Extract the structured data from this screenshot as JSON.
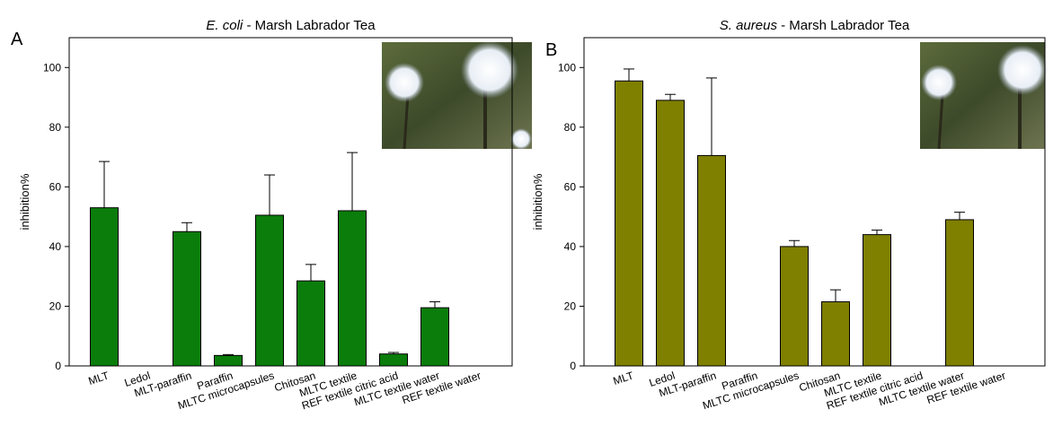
{
  "chart_data": [
    {
      "type": "bar",
      "panel_label": "A",
      "title_species": "E. coli",
      "title": "- Marsh Labrador Tea",
      "y_label": "inhibition%",
      "categories": [
        "MLT",
        "Ledol",
        "MLT-paraffin",
        "Paraffin",
        "MLTC microcapsules",
        "Chitosan",
        "MLTC textile",
        "REF textile citric acid",
        "MLTC textile water",
        "REF textile water"
      ],
      "values": [
        53,
        0,
        45,
        3.5,
        50.5,
        28.5,
        52,
        4,
        19.5,
        0
      ],
      "errors": [
        15.5,
        null,
        3,
        0.3,
        13.5,
        5.5,
        19.5,
        0.5,
        2,
        null
      ],
      "color": "#0a7d0a",
      "ylim": [
        0,
        110
      ],
      "yticks": [
        0,
        20,
        40,
        60,
        80,
        100
      ]
    },
    {
      "type": "bar",
      "panel_label": "B",
      "title_species": "S. aureus",
      "title": "- Marsh Labrador Tea",
      "y_label": "inhibition%",
      "categories": [
        "MLT",
        "Ledol",
        "MLT-paraffin",
        "Paraffin",
        "MLTC microcapsules",
        "Chitosan",
        "MLTC textile",
        "REF textile citric acid",
        "MLTC textile water",
        "REF textile water"
      ],
      "values": [
        95.5,
        89,
        70.5,
        0,
        40,
        21.5,
        44,
        0,
        49,
        0
      ],
      "errors": [
        4,
        2,
        26,
        null,
        2,
        4,
        1.5,
        null,
        2.5,
        null
      ],
      "color": "#7f7f00",
      "ylim": [
        0,
        110
      ],
      "yticks": [
        0,
        20,
        40,
        60,
        80,
        100
      ]
    }
  ]
}
